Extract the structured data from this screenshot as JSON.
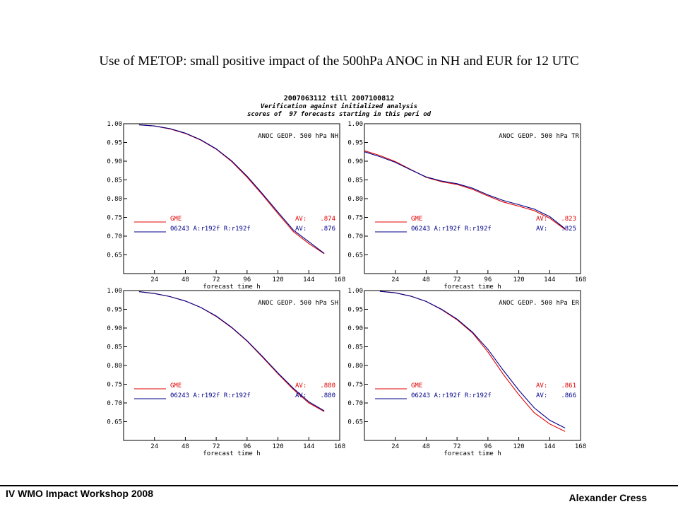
{
  "slide": {
    "title": "Use of METOP:  small positive impact of the 500hPa ANOC in NH and EUR for 12 UTC",
    "header_line1": "2007063112 till 2007100812",
    "header_line2": "Verification against initialized analysis",
    "header_line3": "scores of  97 forecasts starting in this peri od",
    "footer_left": "IV WMO Impact Workshop 2008",
    "footer_right": "Alexander Cress"
  },
  "colors": {
    "gme": "#e00000",
    "exp": "#00008b",
    "axis": "#000000"
  },
  "chart_data": [
    {
      "type": "line",
      "title": "ANOC GEOP. 500 hPa NH",
      "xlabel": "forecast time   h",
      "ylabel": "",
      "xlim": [
        0,
        168
      ],
      "ylim": [
        0.6,
        1.0
      ],
      "xticks": [
        24,
        48,
        72,
        96,
        120,
        144,
        168
      ],
      "yticks": [
        0.65,
        0.7,
        0.75,
        0.8,
        0.85,
        0.9,
        0.95,
        1.0
      ],
      "ytick_labels": [
        "0.65",
        "0.70",
        "0.75",
        "0.80",
        "0.85",
        "0.90",
        "0.95",
        "1.00"
      ],
      "series": [
        {
          "name": "GME",
          "av_label": "AV:",
          "av_value": ".874",
          "color": "#e00000",
          "x": [
            12,
            24,
            36,
            48,
            60,
            72,
            84,
            96,
            108,
            120,
            132,
            144,
            156
          ],
          "y": [
            0.997,
            0.994,
            0.986,
            0.974,
            0.956,
            0.932,
            0.899,
            0.857,
            0.81,
            0.76,
            0.712,
            0.68,
            0.653
          ]
        },
        {
          "name": "06243   A:r192f R:r192f",
          "av_label": "AV:",
          "av_value": ".876",
          "color": "#00008b",
          "x": [
            12,
            24,
            36,
            48,
            60,
            72,
            84,
            96,
            108,
            120,
            132,
            144,
            156
          ],
          "y": [
            0.997,
            0.994,
            0.987,
            0.975,
            0.957,
            0.933,
            0.901,
            0.86,
            0.813,
            0.764,
            0.716,
            0.685,
            0.654
          ]
        }
      ]
    },
    {
      "type": "line",
      "title": "ANOC GEOP. 500 hPa TR",
      "xlabel": "forecast time   h",
      "ylabel": "",
      "xlim": [
        0,
        168
      ],
      "ylim": [
        0.6,
        1.0
      ],
      "xticks": [
        24,
        48,
        72,
        96,
        120,
        144,
        168
      ],
      "yticks": [
        0.65,
        0.7,
        0.75,
        0.8,
        0.85,
        0.9,
        0.95,
        1.0
      ],
      "ytick_labels": [
        "0.65",
        "0.70",
        "0.75",
        "0.80",
        "0.85",
        "0.90",
        "0.95",
        "1.00"
      ],
      "series": [
        {
          "name": "GME",
          "av_label": "AV:",
          "av_value": ".823",
          "color": "#e00000",
          "x": [
            0,
            12,
            24,
            36,
            48,
            60,
            72,
            84,
            96,
            108,
            120,
            132,
            144,
            156
          ],
          "y": [
            0.928,
            0.915,
            0.899,
            0.878,
            0.857,
            0.845,
            0.838,
            0.825,
            0.807,
            0.791,
            0.78,
            0.768,
            0.748,
            0.718
          ]
        },
        {
          "name": "06243   A:r192f R:r192f",
          "av_label": "AV:",
          "av_value": ".825",
          "color": "#00008b",
          "x": [
            0,
            12,
            24,
            36,
            48,
            60,
            72,
            84,
            96,
            108,
            120,
            132,
            144,
            156
          ],
          "y": [
            0.925,
            0.912,
            0.897,
            0.877,
            0.858,
            0.847,
            0.84,
            0.828,
            0.81,
            0.795,
            0.784,
            0.772,
            0.752,
            0.72
          ]
        }
      ]
    },
    {
      "type": "line",
      "title": "ANOC GEOP. 500 hPa SH",
      "xlabel": "forecast time   h",
      "ylabel": "",
      "xlim": [
        0,
        168
      ],
      "ylim": [
        0.6,
        1.0
      ],
      "xticks": [
        24,
        48,
        72,
        96,
        120,
        144,
        168
      ],
      "yticks": [
        0.65,
        0.7,
        0.75,
        0.8,
        0.85,
        0.9,
        0.95,
        1.0
      ],
      "ytick_labels": [
        "0.65",
        "0.70",
        "0.75",
        "0.80",
        "0.85",
        "0.90",
        "0.95",
        "1.00"
      ],
      "series": [
        {
          "name": "GME",
          "av_label": "AV:",
          "av_value": ".880",
          "color": "#e00000",
          "x": [
            12,
            24,
            36,
            48,
            60,
            72,
            84,
            96,
            108,
            120,
            132,
            144,
            156
          ],
          "y": [
            0.997,
            0.992,
            0.984,
            0.972,
            0.955,
            0.931,
            0.901,
            0.865,
            0.822,
            0.778,
            0.736,
            0.7,
            0.677
          ]
        },
        {
          "name": "06243   A:r192f R:r192f",
          "av_label": "AV:",
          "av_value": ".880",
          "color": "#00008b",
          "x": [
            12,
            24,
            36,
            48,
            60,
            72,
            84,
            96,
            108,
            120,
            132,
            144,
            156
          ],
          "y": [
            0.997,
            0.992,
            0.984,
            0.972,
            0.955,
            0.932,
            0.902,
            0.866,
            0.824,
            0.78,
            0.739,
            0.703,
            0.679
          ]
        }
      ]
    },
    {
      "type": "line",
      "title": "ANOC GEOP. 500 hPa ER",
      "xlabel": "forecast time   h",
      "ylabel": "",
      "xlim": [
        0,
        168
      ],
      "ylim": [
        0.6,
        1.0
      ],
      "xticks": [
        24,
        48,
        72,
        96,
        120,
        144,
        168
      ],
      "yticks": [
        0.65,
        0.7,
        0.75,
        0.8,
        0.85,
        0.9,
        0.95,
        1.0
      ],
      "ytick_labels": [
        "0.65",
        "0.70",
        "0.75",
        "0.80",
        "0.85",
        "0.90",
        "0.95",
        "1.00"
      ],
      "series": [
        {
          "name": "GME",
          "av_label": "AV:",
          "av_value": ".861",
          "color": "#e00000",
          "x": [
            12,
            24,
            36,
            48,
            60,
            72,
            84,
            96,
            108,
            120,
            132,
            144,
            156
          ],
          "y": [
            0.998,
            0.994,
            0.985,
            0.971,
            0.949,
            0.922,
            0.887,
            0.836,
            0.776,
            0.722,
            0.674,
            0.644,
            0.624
          ]
        },
        {
          "name": "06243   A:r192f R:r192f",
          "av_label": "AV:",
          "av_value": ".866",
          "color": "#00008b",
          "x": [
            12,
            24,
            36,
            48,
            60,
            72,
            84,
            96,
            108,
            120,
            132,
            144,
            156
          ],
          "y": [
            0.998,
            0.994,
            0.985,
            0.971,
            0.95,
            0.924,
            0.889,
            0.843,
            0.787,
            0.734,
            0.687,
            0.654,
            0.633
          ]
        }
      ]
    }
  ]
}
